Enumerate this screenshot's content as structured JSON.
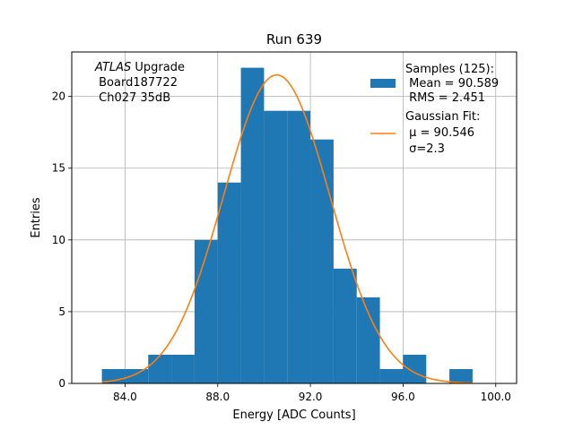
{
  "chart_data": {
    "type": "bar",
    "title": "Run 639",
    "xlabel": "Energy [ADC Counts]",
    "ylabel": "Entries",
    "xlim": [
      81.7,
      100.9
    ],
    "ylim": [
      0,
      23.1
    ],
    "xticks": [
      84.0,
      88.0,
      92.0,
      96.0,
      100.0
    ],
    "xtick_labels": [
      "84.0",
      "88.0",
      "92.0",
      "96.0",
      "100.0"
    ],
    "yticks": [
      0,
      5,
      10,
      15,
      20
    ],
    "ytick_labels": [
      "0",
      "5",
      "10",
      "15",
      "20"
    ],
    "grid": true,
    "histogram": {
      "name": "Samples (125):",
      "color": "#1f77b4",
      "bin_edges": [
        83,
        84,
        85,
        86,
        87,
        88,
        89,
        90,
        91,
        92,
        93,
        94,
        95,
        96,
        97,
        98,
        99
      ],
      "counts": [
        1,
        1,
        2,
        2,
        10,
        14,
        22,
        19,
        19,
        17,
        8,
        6,
        1,
        2,
        0,
        1
      ]
    },
    "gaussian_fit": {
      "name": "Gaussian Fit:",
      "color": "#ff7f0e",
      "mu": 90.546,
      "sigma": 2.3,
      "amplitude": 21.5,
      "x_range": [
        83,
        99
      ]
    },
    "legend": {
      "placement": "top-right",
      "entries": [
        {
          "lines": [
            "Samples (125):",
            " Mean = 90.589",
            " RMS = 2.451"
          ]
        },
        {
          "lines": [
            "Gaussian Fit:",
            " μ = 90.546",
            " σ=2.3"
          ]
        }
      ]
    },
    "annotation": {
      "placement": "top-left",
      "italic": "ATLAS",
      "rest": " Upgrade",
      "lines": [
        " Board187722",
        " Ch027 35dB"
      ]
    }
  }
}
